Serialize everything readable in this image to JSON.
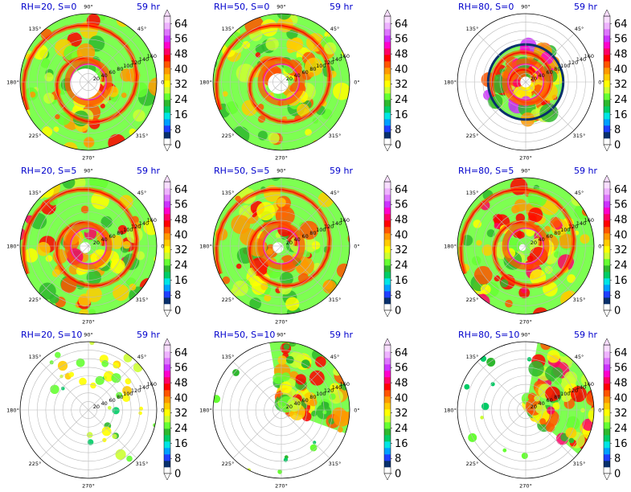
{
  "figure": {
    "time_label": "59 hr",
    "colors": {
      "title_color": "#0000cc",
      "grid_color": "#bbbbbb",
      "frame_color": "#000000"
    }
  },
  "chart_data": {
    "type": "polar-filled-contour-grid",
    "grid": {
      "rows": 3,
      "cols": 3
    },
    "angle_labels": [
      "0°",
      "45°",
      "90°",
      "135°",
      "180°",
      "225°",
      "270°",
      "315°"
    ],
    "radial_labels": [
      "20",
      "40",
      "60",
      "80",
      "100",
      "120",
      "140",
      "160"
    ],
    "colorbar": {
      "tick_labels": [
        "0",
        "8",
        "16",
        "24",
        "32",
        "40",
        "48",
        "56",
        "64"
      ],
      "range": [
        0,
        68
      ],
      "extend": "both",
      "colors": [
        "#ffffff",
        "#08306b",
        "#1f3fff",
        "#00a0ff",
        "#00e5e5",
        "#00cc66",
        "#2eb82e",
        "#66ff33",
        "#ccff33",
        "#ffff00",
        "#ffcc00",
        "#ff9900",
        "#ff5500",
        "#ff0000",
        "#ff0066",
        "#ff00cc",
        "#cc33ff",
        "#dd77ff",
        "#eeb3ff",
        "#f8ddff"
      ]
    },
    "panels": [
      {
        "title": "RH=20, S=0",
        "time": "59 hr"
      },
      {
        "title": "RH=50, S=0",
        "time": "59 hr"
      },
      {
        "title": "RH=80, S=0",
        "time": "59 hr"
      },
      {
        "title": "RH=20, S=5",
        "time": "59 hr"
      },
      {
        "title": "RH=50, S=5",
        "time": "59 hr"
      },
      {
        "title": "RH=80, S=5",
        "time": "59 hr"
      },
      {
        "title": "RH=20, S=10",
        "time": "59 hr"
      },
      {
        "title": "RH=50, S=10",
        "time": "59 hr"
      },
      {
        "title": "RH=80, S=10",
        "time": "59 hr"
      }
    ]
  }
}
